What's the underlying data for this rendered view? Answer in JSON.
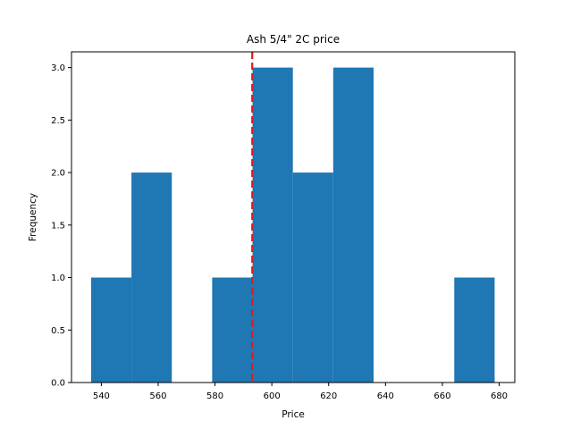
{
  "chart_data": {
    "type": "bar",
    "title": "Ash 5/4\" 2C price",
    "xlabel": "Price",
    "ylabel": "Frequency",
    "xlim": [
      529.5,
      685.5
    ],
    "ylim": [
      0,
      3.15
    ],
    "bins": [
      {
        "x0": 536.4,
        "x1": 550.6,
        "count": 1
      },
      {
        "x0": 550.6,
        "x1": 564.8,
        "count": 2
      },
      {
        "x0": 564.8,
        "x1": 579.0,
        "count": 0
      },
      {
        "x0": 579.0,
        "x1": 593.2,
        "count": 1
      },
      {
        "x0": 593.2,
        "x1": 607.4,
        "count": 3
      },
      {
        "x0": 607.4,
        "x1": 621.6,
        "count": 2
      },
      {
        "x0": 621.6,
        "x1": 635.8,
        "count": 3
      },
      {
        "x0": 635.8,
        "x1": 650.0,
        "count": 0
      },
      {
        "x0": 650.0,
        "x1": 664.2,
        "count": 0
      },
      {
        "x0": 664.2,
        "x1": 678.4,
        "count": 1
      }
    ],
    "xticks": [
      "540",
      "560",
      "580",
      "600",
      "620",
      "640",
      "660",
      "680"
    ],
    "yticks": [
      "0.0",
      "0.5",
      "1.0",
      "1.5",
      "2.0",
      "2.5",
      "3.0"
    ],
    "vline": {
      "x": 593.1,
      "color": "#e41a1c",
      "style": "dashed"
    },
    "bar_color": "#1f77b4",
    "grid": false
  }
}
